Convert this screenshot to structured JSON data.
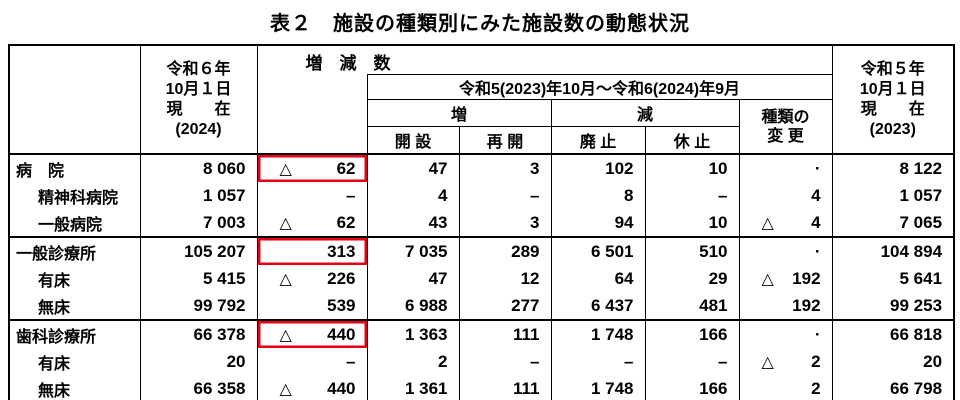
{
  "title": "表２　施設の種類別にみた施設数の動態状況",
  "colors": {
    "text": "#000000",
    "border": "#000000",
    "highlight_red": "#e60013",
    "background": "#ffffff"
  },
  "marks": {
    "triangle": "△",
    "dash": "–",
    "dot": "·"
  },
  "header": {
    "change_total": "増　減　数",
    "period": "令和5(2023)年10月～令和6(2024)年9月",
    "increase": "増",
    "decrease": "減",
    "type_change": [
      "種類の",
      "変 更"
    ],
    "sub_columns": [
      "開 設",
      "再 開",
      "廃 止",
      "休 止"
    ],
    "current_2024": {
      "lines": [
        "令和６年",
        "10月１日",
        "現　　在",
        "(2024)"
      ]
    },
    "current_2023": {
      "lines": [
        "令和５年",
        "10月１日",
        "現　　在",
        "(2023)"
      ]
    }
  },
  "rows": [
    {
      "label": "病　院",
      "indent": 0,
      "cells": [
        {
          "v": "8 060"
        },
        {
          "v": "62",
          "tri": true,
          "red": true
        },
        {
          "v": "47"
        },
        {
          "v": "3"
        },
        {
          "v": "102"
        },
        {
          "v": "10"
        },
        {
          "v": "·"
        },
        {
          "v": "8 122"
        }
      ]
    },
    {
      "label": "精神科病院",
      "indent": 1,
      "cells": [
        {
          "v": "1 057"
        },
        {
          "v": "–"
        },
        {
          "v": "4"
        },
        {
          "v": "–"
        },
        {
          "v": "8"
        },
        {
          "v": "–"
        },
        {
          "v": "4"
        },
        {
          "v": "1 057"
        }
      ]
    },
    {
      "label": "一般病院",
      "indent": 1,
      "cells": [
        {
          "v": "7 003"
        },
        {
          "v": "62",
          "tri": true
        },
        {
          "v": "43"
        },
        {
          "v": "3"
        },
        {
          "v": "94"
        },
        {
          "v": "10"
        },
        {
          "v": "4",
          "tri": true
        },
        {
          "v": "7 065"
        }
      ]
    },
    {
      "label": "一般診療所",
      "indent": 0,
      "cells": [
        {
          "v": "105 207"
        },
        {
          "v": "313",
          "red": true
        },
        {
          "v": "7 035"
        },
        {
          "v": "289"
        },
        {
          "v": "6 501"
        },
        {
          "v": "510"
        },
        {
          "v": "·"
        },
        {
          "v": "104 894"
        }
      ]
    },
    {
      "label": "有床",
      "indent": 1,
      "cells": [
        {
          "v": "5 415"
        },
        {
          "v": "226",
          "tri": true
        },
        {
          "v": "47"
        },
        {
          "v": "12"
        },
        {
          "v": "64"
        },
        {
          "v": "29"
        },
        {
          "v": "192",
          "tri": true
        },
        {
          "v": "5 641"
        }
      ]
    },
    {
      "label": "無床",
      "indent": 1,
      "cells": [
        {
          "v": "99 792"
        },
        {
          "v": "539"
        },
        {
          "v": "6 988"
        },
        {
          "v": "277"
        },
        {
          "v": "6 437"
        },
        {
          "v": "481"
        },
        {
          "v": "192"
        },
        {
          "v": "99 253"
        }
      ]
    },
    {
      "label": "歯科診療所",
      "indent": 0,
      "cells": [
        {
          "v": "66 378"
        },
        {
          "v": "440",
          "tri": true,
          "red": true
        },
        {
          "v": "1 363"
        },
        {
          "v": "111"
        },
        {
          "v": "1 748"
        },
        {
          "v": "166"
        },
        {
          "v": "·"
        },
        {
          "v": "66 818"
        }
      ]
    },
    {
      "label": "有床",
      "indent": 1,
      "cells": [
        {
          "v": "20"
        },
        {
          "v": "–"
        },
        {
          "v": "2"
        },
        {
          "v": "–"
        },
        {
          "v": "–"
        },
        {
          "v": "–"
        },
        {
          "v": "2",
          "tri": true
        },
        {
          "v": "20"
        }
      ]
    },
    {
      "label": "無床",
      "indent": 1,
      "cells": [
        {
          "v": "66 358"
        },
        {
          "v": "440",
          "tri": true
        },
        {
          "v": "1 361"
        },
        {
          "v": "111"
        },
        {
          "v": "1 748"
        },
        {
          "v": "166"
        },
        {
          "v": "2"
        },
        {
          "v": "66 798"
        }
      ]
    }
  ]
}
